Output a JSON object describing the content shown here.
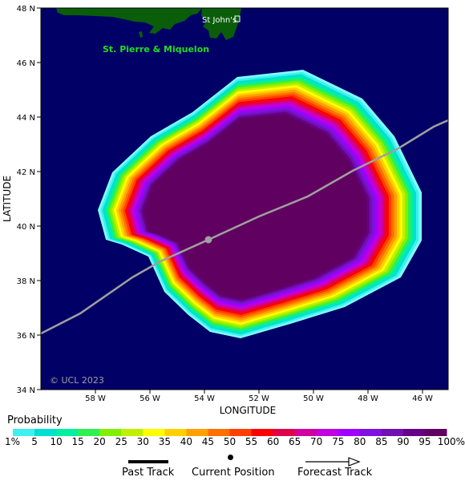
{
  "map": {
    "lat_labels": [
      "48 N",
      "46 N",
      "44 N",
      "42 N",
      "40 N",
      "38 N",
      "36 N",
      "34 N"
    ],
    "lon_labels": [
      "58 W",
      "56 W",
      "54 W",
      "52 W",
      "50 W",
      "48 W",
      "46 W"
    ],
    "x_title": "LONGITUDE",
    "y_title": "LATITUDE",
    "place_stjohns": "St John's",
    "place_stpierre": "St. Pierre & Miquelon",
    "copyright": "© UCL 2023",
    "ocean_color": "#000066",
    "land_color": "#0a5e0a",
    "track_color": "#a0a0a0",
    "current_position": {
      "lat": 39.5,
      "lon": 53.8
    }
  },
  "legend": {
    "title": "Probability",
    "labels": [
      "1%",
      "5",
      "10",
      "15",
      "20",
      "25",
      "30",
      "35",
      "40",
      "45",
      "50",
      "55",
      "60",
      "65",
      "70",
      "75",
      "80",
      "85",
      "90",
      "95",
      "100%"
    ],
    "colors": [
      "#80ffff",
      "#40f0f0",
      "#00e0d0",
      "#00f0a0",
      "#30f050",
      "#80f000",
      "#c0f000",
      "#ffff00",
      "#ffd000",
      "#ffa000",
      "#ff7000",
      "#ff4000",
      "#ff0000",
      "#e0004a",
      "#d000a0",
      "#c000e0",
      "#a000ff",
      "#8010e0",
      "#7010b0",
      "#660088",
      "#600060"
    ],
    "past_track": "Past Track",
    "current_position": "Current Position",
    "forecast_track": "Forecast Track"
  }
}
